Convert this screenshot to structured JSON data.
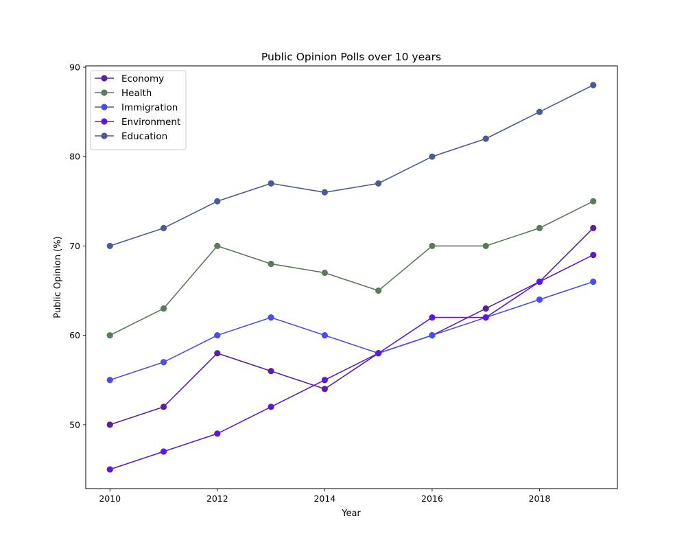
{
  "chart_data": {
    "type": "line",
    "title": "Public Opinion Polls over 10 years",
    "xlabel": "Year",
    "ylabel": "Public Opinion (%)",
    "x": [
      2010,
      2011,
      2012,
      2013,
      2014,
      2015,
      2016,
      2017,
      2018,
      2019
    ],
    "xlim": [
      2009.55,
      2019.45
    ],
    "ylim": [
      42.85,
      90.15
    ],
    "xticks": [
      2010,
      2012,
      2014,
      2016,
      2018
    ],
    "yticks": [
      50,
      60,
      70,
      80,
      90
    ],
    "grid": false,
    "legend_position": "top-left",
    "series": [
      {
        "name": "Economy",
        "color": "#5a1f9e",
        "values": [
          50,
          52,
          58,
          56,
          54,
          58,
          60,
          63,
          66,
          72
        ]
      },
      {
        "name": "Health",
        "color": "#5a7a5a",
        "values": [
          60,
          63,
          70,
          68,
          67,
          65,
          70,
          70,
          72,
          75
        ]
      },
      {
        "name": "Immigration",
        "color": "#4b4de8",
        "values": [
          55,
          57,
          60,
          62,
          60,
          58,
          60,
          62,
          64,
          66
        ]
      },
      {
        "name": "Environment",
        "color": "#5a18e0",
        "values": [
          45,
          47,
          49,
          52,
          55,
          58,
          62,
          62,
          66,
          69
        ]
      },
      {
        "name": "Education",
        "color": "#4b5a94",
        "values": [
          70,
          72,
          75,
          77,
          76,
          77,
          80,
          82,
          85,
          88
        ]
      }
    ]
  }
}
